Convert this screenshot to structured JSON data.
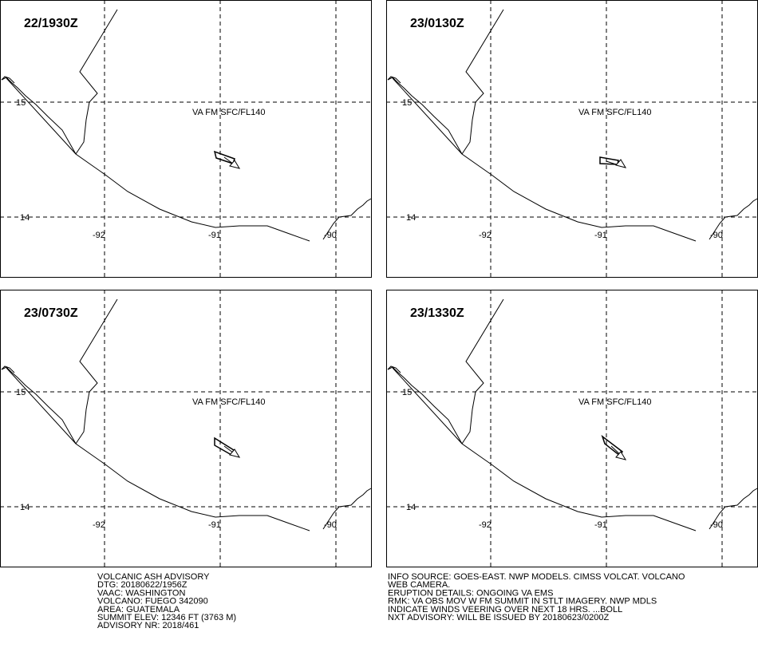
{
  "panels": [
    {
      "time": "22/1930Z",
      "ash_label": "VA FM SFC/FL140",
      "lat_labels": [
        "15",
        "14"
      ],
      "lon_labels": [
        "-92",
        "-91",
        "-90"
      ]
    },
    {
      "time": "23/0130Z",
      "ash_label": "VA FM SFC/FL140",
      "lat_labels": [
        "15",
        "14"
      ],
      "lon_labels": [
        "-92",
        "-91",
        "-90"
      ]
    },
    {
      "time": "23/0730Z",
      "ash_label": "VA FM SFC/FL140",
      "lat_labels": [
        "15",
        "14"
      ],
      "lon_labels": [
        "-92",
        "-91",
        "-90"
      ]
    },
    {
      "time": "23/1330Z",
      "ash_label": "VA FM SFC/FL140",
      "lat_labels": [
        "15",
        "14"
      ],
      "lon_labels": [
        "-92",
        "-91",
        "-90"
      ]
    }
  ],
  "advisory": {
    "left": [
      "VOLCANIC ASH ADVISORY",
      "DTG: 20180622/1956Z",
      "VAAC: WASHINGTON",
      "VOLCANO: FUEGO 342090",
      "AREA: GUATEMALA",
      "SUMMIT ELEV: 12346 FT (3763 M)",
      "ADVISORY NR: 2018/461"
    ],
    "right": [
      "INFO SOURCE: GOES-EAST. NWP MODELS. CIMSS VOLCAT. VOLCANO",
      "WEB CAMERA.",
      "ERUPTION DETAILS: ONGOING VA EMS",
      "RMK: VA OBS MOV W FM SUMMIT IN STLT IMAGERY. NWP MDLS",
      "INDICATE WINDS VEERING OVER NEXT 18 HRS. ...BOLL",
      "NXT ADVISORY: WILL BE ISSUED BY 20180623/0200Z"
    ]
  }
}
